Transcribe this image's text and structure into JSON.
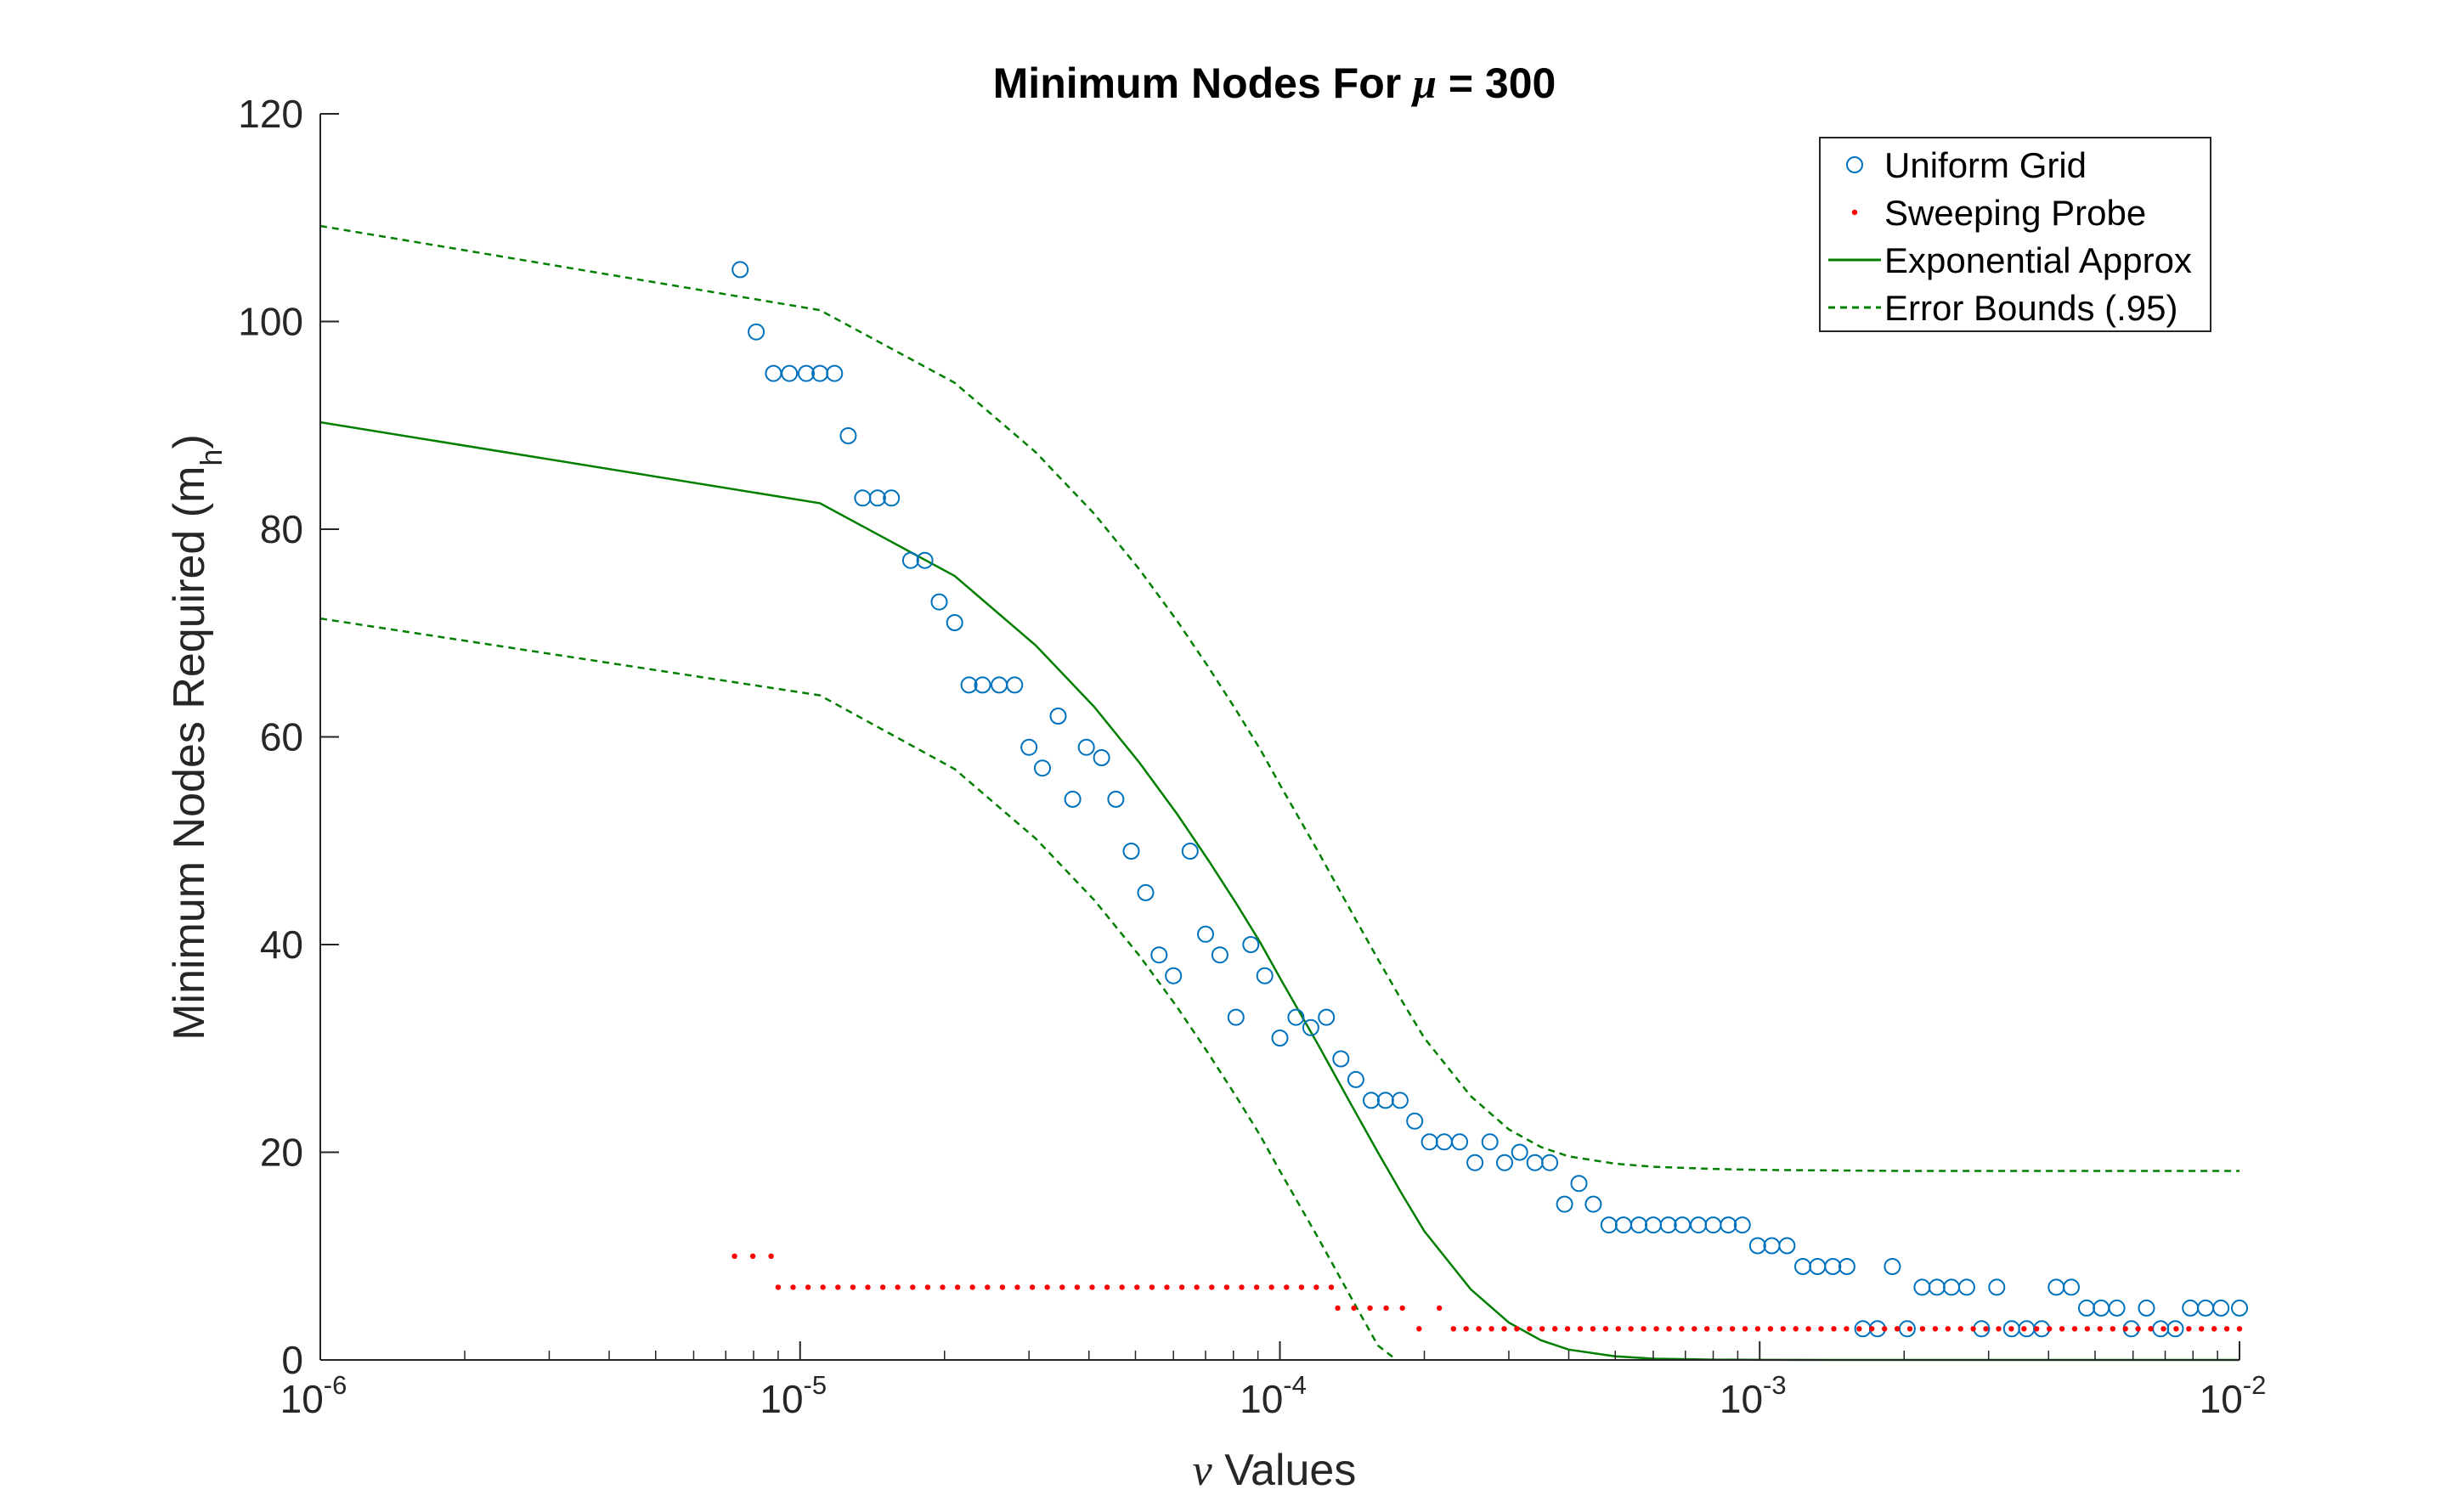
{
  "chart_data": {
    "type": "scatter",
    "title_prefix": "Minimum Nodes For ",
    "title_greek": "μ",
    "title_suffix": " = 300",
    "xlabel_greek": "ν",
    "xlabel_text": " Values",
    "ylabel_text": "Minimum Nodes Required (m",
    "ylabel_sub": "h",
    "ylabel_close": ")",
    "x_scale": "log",
    "xlim": [
      1e-06,
      0.01
    ],
    "ylim": [
      0,
      120
    ],
    "x_ticks": [
      {
        "base": "10",
        "exp": "-6",
        "value": 1e-06
      },
      {
        "base": "10",
        "exp": "-5",
        "value": 1e-05
      },
      {
        "base": "10",
        "exp": "-4",
        "value": 0.0001
      },
      {
        "base": "10",
        "exp": "-3",
        "value": 0.001
      },
      {
        "base": "10",
        "exp": "-2",
        "value": 0.01
      }
    ],
    "y_ticks": [
      "0",
      "20",
      "40",
      "60",
      "80",
      "100",
      "120"
    ],
    "grid": false,
    "legend_position": "top-right",
    "colors": {
      "uniform": "#0072BD",
      "probe": "#FF0000",
      "approx": "#007F00",
      "axes": "#262626"
    },
    "series": [
      {
        "name": "Uniform Grid",
        "style": "circle",
        "x": [
          7.5e-06,
          8.1e-06,
          8.8e-06,
          9.5e-06,
          1.03e-05,
          1.1e-05,
          1.18e-05,
          1.26e-05,
          1.35e-05,
          1.45e-05,
          1.55e-05,
          1.7e-05,
          1.82e-05,
          1.95e-05,
          2.1e-05,
          2.25e-05,
          2.4e-05,
          2.6e-05,
          2.8e-05,
          3e-05,
          3.2e-05,
          3.45e-05,
          3.7e-05,
          3.95e-05,
          4.25e-05,
          4.55e-05,
          4.9e-05,
          5.25e-05,
          5.6e-05,
          6e-05,
          6.5e-05,
          7e-05,
          7.5e-05,
          8.1e-05,
          8.7e-05,
          9.3e-05,
          0.0001,
          0.000108,
          0.000116,
          0.000125,
          0.000134,
          0.000144,
          0.000155,
          0.000166,
          0.000178,
          0.000191,
          0.000205,
          0.00022,
          0.000237,
          0.000255,
          0.000274,
          0.000294,
          0.000316,
          0.00034,
          0.000365,
          0.000392,
          0.00042,
          0.00045,
          0.000485,
          0.00052,
          0.00056,
          0.0006,
          0.000645,
          0.00069,
          0.000745,
          0.0008,
          0.00086,
          0.00092,
          0.00099,
          0.00106,
          0.00114,
          0.00123,
          0.00132,
          0.00142,
          0.00152,
          0.00164,
          0.00176,
          0.00189,
          0.00203,
          0.00218,
          0.00234,
          0.00251,
          0.0027,
          0.0029,
          0.00312,
          0.00335,
          0.0036,
          0.00387,
          0.00415,
          0.00446,
          0.0048,
          0.00515,
          0.00555,
          0.00595,
          0.0064,
          0.00685,
          0.00735,
          0.0079,
          0.0085,
          0.00915,
          0.01
        ],
        "values": [
          105,
          99,
          95,
          95,
          95,
          95,
          95,
          89,
          83,
          83,
          83,
          77,
          77,
          73,
          71,
          65,
          65,
          65,
          65,
          59,
          57,
          62,
          54,
          59,
          58,
          54,
          49,
          45,
          39,
          37,
          49,
          41,
          39,
          33,
          40,
          37,
          31,
          33,
          32,
          33,
          29,
          27,
          25,
          25,
          25,
          23,
          21,
          21,
          21,
          19,
          21,
          19,
          20,
          19,
          19,
          15,
          17,
          15,
          13,
          13,
          13,
          13,
          13,
          13,
          13,
          13,
          13,
          13,
          11,
          11,
          11,
          9,
          9,
          9,
          9,
          3,
          3,
          9,
          3,
          7,
          7,
          7,
          7,
          3,
          7,
          3,
          3,
          3,
          7,
          7,
          5,
          5,
          5,
          3,
          5,
          3,
          3,
          5,
          5,
          5,
          5
        ]
      },
      {
        "name": "Sweeping Probe",
        "style": "dot",
        "segments": [
          {
            "x_start": 7.3e-06,
            "x_end": 8.7e-06,
            "value": 10,
            "count": 3
          },
          {
            "x_start": 9e-06,
            "x_end": 0.000128,
            "value": 7,
            "count": 38
          },
          {
            "x_start": 0.000132,
            "x_end": 0.00018,
            "value": 5,
            "count": 5
          },
          {
            "x_start": 0.000215,
            "x_end": 0.000215,
            "value": 5,
            "count": 1
          },
          {
            "x_start": 0.000195,
            "x_end": 0.000195,
            "value": 3,
            "count": 1
          },
          {
            "x_start": 0.00023,
            "x_end": 0.01,
            "value": 3,
            "count": 63
          }
        ]
      },
      {
        "name": "Exponential Approx",
        "style": "solid",
        "x": [
          1e-06,
          1.1e-05,
          2.1e-05,
          3.1e-05,
          4.1e-05,
          5.1e-05,
          6.1e-05,
          7.1e-05,
          8.1e-05,
          9.1e-05,
          0.0001,
          0.00012,
          0.00014,
          0.00016,
          0.00018,
          0.0002,
          0.00025,
          0.0003,
          0.00035,
          0.0004,
          0.0005,
          0.0006,
          0.0008,
          0.001,
          0.002,
          0.005,
          0.01
        ],
        "values": [
          90.3,
          82.5,
          75.5,
          68.8,
          62.9,
          57.5,
          52.6,
          48.1,
          44.0,
          40.2,
          36.8,
          30.4,
          24.8,
          20.0,
          15.9,
          12.4,
          6.8,
          3.6,
          1.9,
          1.0,
          0.35,
          0.12,
          0.03,
          0.01,
          0.0,
          0.0,
          0.0
        ]
      },
      {
        "name": "Error Bounds (.95)",
        "style": "dashed",
        "upper": {
          "x": [
            1e-06,
            1.1e-05,
            2.1e-05,
            3.1e-05,
            4.1e-05,
            5.1e-05,
            6.1e-05,
            7.1e-05,
            8.1e-05,
            9.1e-05,
            0.0001,
            0.00012,
            0.00014,
            0.00016,
            0.00018,
            0.0002,
            0.00025,
            0.0003,
            0.00035,
            0.0004,
            0.0005,
            0.0006,
            0.0008,
            0.001,
            0.002,
            0.005,
            0.01
          ],
          "values": [
            109.2,
            101.1,
            94.1,
            87.4,
            81.5,
            76.1,
            71.2,
            66.7,
            62.6,
            58.8,
            55.4,
            49.0,
            43.4,
            38.6,
            34.5,
            31.0,
            25.4,
            22.2,
            20.5,
            19.6,
            18.9,
            18.6,
            18.4,
            18.3,
            18.2,
            18.2,
            18.2
          ]
        },
        "lower": {
          "x": [
            1e-06,
            1.1e-05,
            2.1e-05,
            3.1e-05,
            4.1e-05,
            5.1e-05,
            6.1e-05,
            7.1e-05,
            8.1e-05,
            9.1e-05,
            0.0001,
            0.00012,
            0.00014,
            0.00016,
            0.000175
          ],
          "values": [
            71.4,
            64.0,
            56.9,
            50.2,
            44.3,
            38.9,
            34.0,
            29.5,
            25.4,
            21.6,
            18.2,
            11.8,
            6.2,
            1.4,
            0.0
          ]
        }
      }
    ]
  }
}
